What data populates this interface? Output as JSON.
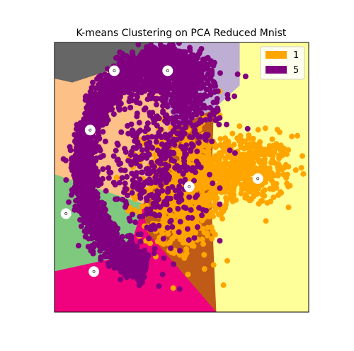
{
  "chart_data": {
    "type": "scatter",
    "title": "K-means Clustering on PCA Reduced Mnist",
    "xlabel": "",
    "ylabel": "",
    "xlim": [
      -1,
      1
    ],
    "ylim": [
      -1,
      1
    ],
    "axes_ticks_visible": false,
    "grid": false,
    "legend": {
      "placement": "top-right",
      "entries": [
        {
          "label": "1",
          "color": "#FFA500"
        },
        {
          "label": "5",
          "color": "#800080"
        }
      ]
    },
    "regions": [
      {
        "color": "#666666",
        "polygon": [
          [
            -1,
            1
          ],
          [
            -0.22,
            1
          ],
          [
            -0.22,
            0.84
          ],
          [
            -0.44,
            0.83
          ],
          [
            -0.86,
            0.7
          ],
          [
            -1,
            0.73
          ]
        ]
      },
      {
        "color": "#BEAED4",
        "polygon": [
          [
            -0.22,
            1
          ],
          [
            0.46,
            1
          ],
          [
            0.46,
            0.68
          ],
          [
            0.25,
            0.5
          ],
          [
            -0.05,
            0.36
          ],
          [
            -0.22,
            0.84
          ]
        ]
      },
      {
        "color": "#FFFF99",
        "polygon": [
          [
            0.46,
            1
          ],
          [
            1,
            1
          ],
          [
            1,
            -1
          ],
          [
            0.27,
            -1
          ],
          [
            0.23,
            -0.15
          ],
          [
            0.25,
            0.5
          ],
          [
            0.46,
            0.68
          ]
        ]
      },
      {
        "color": "#FDC086",
        "polygon": [
          [
            -1,
            0.73
          ],
          [
            -0.86,
            0.7
          ],
          [
            -0.44,
            0.83
          ],
          [
            -0.22,
            0.84
          ],
          [
            -0.05,
            0.36
          ],
          [
            -0.3,
            -0.2
          ],
          [
            -1,
            0.02
          ]
        ]
      },
      {
        "color": "#7FC97F",
        "polygon": [
          [
            -1,
            0.02
          ],
          [
            -0.3,
            -0.2
          ],
          [
            -0.42,
            -0.58
          ],
          [
            -1,
            -0.7
          ]
        ]
      },
      {
        "color": "#BF5B17",
        "polygon": [
          [
            -0.05,
            0.36
          ],
          [
            0.25,
            0.5
          ],
          [
            0.23,
            -0.15
          ],
          [
            0.27,
            -1
          ],
          [
            -0.28,
            -0.4
          ],
          [
            -0.3,
            -0.2
          ]
        ]
      },
      {
        "color": "#F0027F",
        "polygon": [
          [
            -1,
            -0.7
          ],
          [
            -0.42,
            -0.58
          ],
          [
            -0.3,
            -0.2
          ],
          [
            -0.28,
            -0.4
          ],
          [
            0.27,
            -1
          ],
          [
            -1,
            -1
          ]
        ]
      }
    ],
    "series": [
      {
        "name": "1",
        "color": "#FFA500",
        "clusters": [
          {
            "cx": 0.48,
            "cy": 0.05,
            "sx": 0.2,
            "sy": 0.13,
            "n": 500
          },
          {
            "cx": 0.02,
            "cy": -0.05,
            "sx": 0.17,
            "sy": 0.2,
            "n": 600
          },
          {
            "cx": 0.0,
            "cy": -0.35,
            "sx": 0.1,
            "sy": 0.1,
            "n": 150
          }
        ],
        "points": [
          [
            0.33,
            -0.8
          ],
          [
            0.36,
            -0.62
          ],
          [
            -0.42,
            -0.25
          ],
          [
            0.18,
            -0.68
          ],
          [
            0.05,
            -0.72
          ],
          [
            0.3,
            0.46
          ],
          [
            -0.07,
            0.3
          ],
          [
            0.7,
            -0.18
          ]
        ]
      },
      {
        "name": "5",
        "color": "#800080",
        "arc": {
          "cx": -0.15,
          "cy": 0.08,
          "rx": 0.62,
          "ry": 0.78,
          "theta_start": 60,
          "theta_end": 258,
          "sd": 0.08,
          "n": 2400
        },
        "clusters": [
          {
            "cx": -0.22,
            "cy": 0.05,
            "sx": 0.2,
            "sy": 0.25,
            "n": 400
          },
          {
            "cx": 0.05,
            "cy": 0.55,
            "sx": 0.12,
            "sy": 0.14,
            "n": 250
          },
          {
            "cx": -0.15,
            "cy": 0.72,
            "sx": 0.2,
            "sy": 0.08,
            "n": 300
          }
        ],
        "points": [
          [
            0.52,
            0.36
          ],
          [
            0.3,
            0.44
          ],
          [
            0.42,
            0.18
          ],
          [
            0.22,
            0.02
          ],
          [
            0.3,
            -0.2
          ],
          [
            0.1,
            -0.45
          ],
          [
            -0.15,
            -0.72
          ],
          [
            0.15,
            0.3
          ],
          [
            0.38,
            0.2
          ],
          [
            0.02,
            0.12
          ],
          [
            -0.12,
            0.24
          ]
        ]
      }
    ],
    "centroids": [
      {
        "x": -0.53,
        "y": 0.79
      },
      {
        "x": -0.11,
        "y": 0.79
      },
      {
        "x": -0.72,
        "y": 0.35
      },
      {
        "x": -0.91,
        "y": -0.27
      },
      {
        "x": 0.6,
        "y": -0.01
      },
      {
        "x": 0.06,
        "y": -0.07
      },
      {
        "x": -0.69,
        "y": -0.7
      }
    ]
  }
}
